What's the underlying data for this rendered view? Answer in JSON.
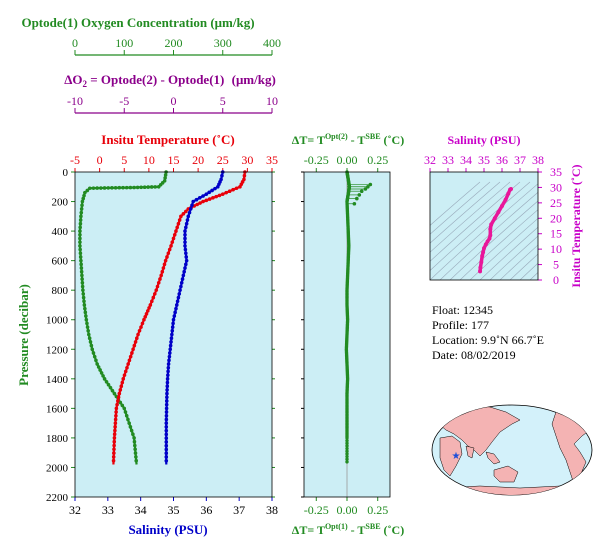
{
  "colors": {
    "green": "#228B22",
    "purple": "#8B008B",
    "red": "#E8000A",
    "blue": "#0000C8",
    "magenta": "#E8179A",
    "plot_bg": "#CCEEF5",
    "land": "#F4B3B3",
    "ocean": "#D3F1FA",
    "float_marker": "#1E4FD8"
  },
  "axes_labels": {
    "oxygen": "Optode(1) Oxygen Concentration",
    "oxygen_unit": "(μm/kg)",
    "delta_o2_prefix": "ΔO",
    "delta_o2_sub": "2",
    "delta_o2_rest": " = Optode(2) - Optode(1)",
    "delta_o2_unit": "(μm/kg)",
    "temperature": "Insitu Temperature",
    "temperature_unit": "(˚C)",
    "salinity": "Salinity (PSU)",
    "pressure": "Pressure (decibar)",
    "dt_top_prefix": "ΔT= T",
    "dt_top_sup": "Opt(2)",
    "dt_mid": " - T",
    "dt_sup_sbe": "SBE",
    "dt_unit": " (˚C)",
    "dt_bottom_prefix": "ΔT= T",
    "dt_bottom_sup": "Opt(1)",
    "inset_salinity": "Salinity (PSU)",
    "inset_temperature": "Insitu Temperature (˚C)"
  },
  "info": {
    "float": "Float:  12345",
    "profile": "Profile:  177",
    "location": "Location:  9.9˚N  66.7˚E",
    "date": "Date:  08/02/2019"
  },
  "ticks": {
    "oxygen": [
      "0",
      "100",
      "200",
      "300",
      "400"
    ],
    "delta_o2": [
      "-10",
      "-5",
      "0",
      "5",
      "10"
    ],
    "temperature": [
      "-5",
      "0",
      "5",
      "10",
      "15",
      "20",
      "25",
      "30",
      "35"
    ],
    "salinity": [
      "32",
      "33",
      "34",
      "35",
      "36",
      "37",
      "38"
    ],
    "pressure": [
      "0",
      "200",
      "400",
      "600",
      "800",
      "1000",
      "1200",
      "1400",
      "1600",
      "1800",
      "2000",
      "2200"
    ],
    "dt": [
      "-0.25",
      "0.00",
      "0.25"
    ],
    "inset_salinity": [
      "32",
      "33",
      "34",
      "35",
      "36",
      "37",
      "38"
    ],
    "inset_temperature": [
      "0",
      "5",
      "10",
      "15",
      "20",
      "25",
      "30",
      "35"
    ]
  },
  "chart_data": [
    {
      "type": "line",
      "panel": "profiles",
      "ylabel": "Pressure (decibar)",
      "ylim": [
        2200,
        0
      ],
      "series": [
        {
          "name": "Optode(1) Oxygen Concentration",
          "x_axis": "oxygen",
          "xlim": [
            0,
            400
          ],
          "x": [
            185,
            182,
            170,
            120,
            60,
            30,
            20,
            15,
            12,
            10,
            10,
            12,
            14,
            16,
            19,
            23,
            28,
            35,
            45,
            60,
            80,
            100,
            120,
            125
          ],
          "y": [
            0,
            60,
            100,
            105,
            108,
            110,
            140,
            200,
            300,
            400,
            500,
            600,
            700,
            800,
            900,
            1000,
            1100,
            1200,
            1300,
            1400,
            1500,
            1600,
            1800,
            1980
          ]
        },
        {
          "name": "Insitu Temperature",
          "x_axis": "temperature",
          "xlim": [
            -5,
            35
          ],
          "x": [
            29.5,
            29.3,
            28.5,
            25,
            21,
            18,
            16.5,
            15.5,
            14.5,
            13.4,
            12.5,
            11.5,
            10.3,
            9,
            7.8,
            6.8,
            5.8,
            4.8,
            4.0,
            3.4,
            3.0,
            2.8
          ],
          "y": [
            0,
            50,
            100,
            150,
            200,
            250,
            300,
            400,
            500,
            600,
            700,
            800,
            900,
            1000,
            1100,
            1200,
            1300,
            1400,
            1500,
            1600,
            1800,
            1980
          ]
        },
        {
          "name": "Salinity",
          "x_axis": "salinity",
          "xlim": [
            32,
            38
          ],
          "x": [
            36.5,
            36.45,
            36.35,
            36.0,
            35.6,
            35.45,
            35.35,
            35.35,
            35.4,
            35.3,
            35.2,
            35.1,
            35.0,
            34.95,
            34.9,
            34.85,
            34.82,
            34.8,
            34.78,
            34.78
          ],
          "y": [
            0,
            50,
            100,
            150,
            200,
            300,
            400,
            500,
            600,
            700,
            800,
            900,
            1000,
            1100,
            1200,
            1300,
            1400,
            1500,
            1700,
            1980
          ]
        }
      ]
    },
    {
      "type": "scatter",
      "panel": "delta_t",
      "xlim": [
        -0.35,
        0.35
      ],
      "ylim": [
        2200,
        0
      ],
      "series": [
        {
          "name": "ΔT Opt(2)",
          "x": [
            0.0,
            0.01,
            0.02,
            0.01,
            0.0,
            0.005,
            0.01,
            0.015,
            0.01,
            0.005,
            0.0,
            0.0,
            0.005,
            0.0,
            -0.005,
            0.0,
            0.005,
            0.0,
            0.0,
            0.0,
            0.0,
            0.0
          ],
          "y": [
            0,
            50,
            100,
            150,
            200,
            300,
            400,
            500,
            600,
            700,
            800,
            900,
            1000,
            1100,
            1200,
            1300,
            1400,
            1500,
            1600,
            1700,
            1800,
            1980
          ]
        },
        {
          "name": "spikes",
          "x": [
            0.19,
            0.17,
            0.15,
            0.12,
            0.1,
            0.08,
            0.06
          ],
          "y": [
            85,
            100,
            115,
            130,
            155,
            180,
            215
          ]
        }
      ]
    },
    {
      "type": "line",
      "panel": "ts_inset",
      "xlabel": "Salinity (PSU)",
      "ylabel": "Insitu Temperature (˚C)",
      "xlim": [
        32,
        38
      ],
      "ylim": [
        0,
        35
      ],
      "series": [
        {
          "name": "T-S",
          "x": [
            34.78,
            34.8,
            34.85,
            34.9,
            34.95,
            35.0,
            35.1,
            35.2,
            35.3,
            35.35,
            35.35,
            35.4,
            35.6,
            35.8,
            36.0,
            36.2,
            36.35,
            36.45,
            36.5
          ],
          "y": [
            2.8,
            4.0,
            5.8,
            7.8,
            9.0,
            10.3,
            11.5,
            12.5,
            13.4,
            14.5,
            16.5,
            18.0,
            20.0,
            22.0,
            24.0,
            26.0,
            28.0,
            29.3,
            29.5
          ]
        }
      ]
    }
  ]
}
